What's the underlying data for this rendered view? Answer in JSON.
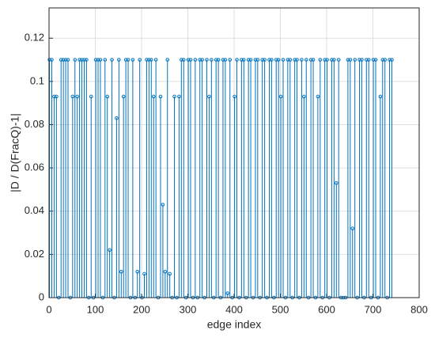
{
  "chart_data": {
    "type": "stem",
    "xlabel": "edge index",
    "ylabel": "|D / D(FracQ)-1|",
    "color": "#0072bd",
    "grid": true,
    "xlim": [
      0,
      800
    ],
    "xticks": [
      0,
      100,
      200,
      300,
      400,
      500,
      600,
      700,
      800
    ],
    "ylim": [
      0,
      0.134
    ],
    "yticks": [
      0,
      0.02,
      0.04,
      0.06,
      0.08,
      0.1,
      0.12
    ],
    "x": [
      1,
      6,
      11,
      16,
      21,
      26,
      31,
      36,
      41,
      46,
      51,
      56,
      61,
      66,
      71,
      76,
      81,
      86,
      91,
      96,
      101,
      106,
      111,
      116,
      121,
      126,
      131,
      136,
      141,
      146,
      151,
      156,
      161,
      166,
      171,
      176,
      181,
      186,
      191,
      196,
      201,
      206,
      211,
      216,
      221,
      226,
      231,
      236,
      241,
      246,
      251,
      256,
      261,
      266,
      271,
      276,
      281,
      286,
      291,
      296,
      301,
      306,
      311,
      316,
      321,
      326,
      331,
      336,
      341,
      346,
      351,
      356,
      361,
      366,
      371,
      376,
      381,
      386,
      391,
      396,
      401,
      406,
      411,
      416,
      421,
      426,
      431,
      436,
      441,
      446,
      451,
      456,
      461,
      466,
      471,
      476,
      481,
      486,
      491,
      496,
      501,
      506,
      511,
      516,
      521,
      526,
      531,
      536,
      541,
      546,
      551,
      556,
      561,
      566,
      571,
      576,
      581,
      586,
      591,
      596,
      601,
      606,
      611,
      616,
      621,
      626,
      631,
      636,
      641,
      646,
      651,
      656,
      661,
      666,
      671,
      676,
      681,
      686,
      691,
      696,
      701,
      706,
      711,
      716,
      721,
      726,
      731,
      736,
      741
    ],
    "values": [
      0.11,
      0.11,
      0.093,
      0.093,
      0,
      0.11,
      0.11,
      0.11,
      0.11,
      0,
      0.093,
      0.11,
      0.093,
      0.11,
      0.11,
      0.11,
      0.11,
      0,
      0.093,
      0,
      0.11,
      0.11,
      0.11,
      0,
      0.11,
      0.093,
      0.022,
      0.11,
      0,
      0.083,
      0.11,
      0.012,
      0.093,
      0.11,
      0.11,
      0,
      0.11,
      0,
      0.012,
      0.11,
      0,
      0.011,
      0.11,
      0.11,
      0.11,
      0.093,
      0.11,
      0,
      0.093,
      0.043,
      0.012,
      0.11,
      0.011,
      0,
      0.093,
      0,
      0.093,
      0.11,
      0.11,
      0,
      0.11,
      0.11,
      0,
      0.11,
      0,
      0.11,
      0.11,
      0,
      0.11,
      0.093,
      0.11,
      0,
      0.11,
      0.11,
      0,
      0.11,
      0.11,
      0.002,
      0.11,
      0,
      0.093,
      0.11,
      0,
      0.11,
      0.11,
      0,
      0.11,
      0.11,
      0,
      0.11,
      0.11,
      0,
      0.11,
      0.11,
      0,
      0.11,
      0.11,
      0,
      0.11,
      0.11,
      0.093,
      0.11,
      0,
      0.11,
      0.11,
      0,
      0.11,
      0.11,
      0,
      0.11,
      0.093,
      0.11,
      0,
      0.11,
      0.11,
      0,
      0.093,
      0.11,
      0,
      0.11,
      0.11,
      0,
      0.11,
      0.11,
      0.053,
      0.11,
      0,
      0,
      0,
      0.11,
      0.11,
      0.032,
      0.11,
      0,
      0.11,
      0.11,
      0,
      0.11,
      0.11,
      0,
      0.11,
      0.11,
      0,
      0.093,
      0.11,
      0.11,
      0,
      0.11,
      0.11
    ]
  }
}
